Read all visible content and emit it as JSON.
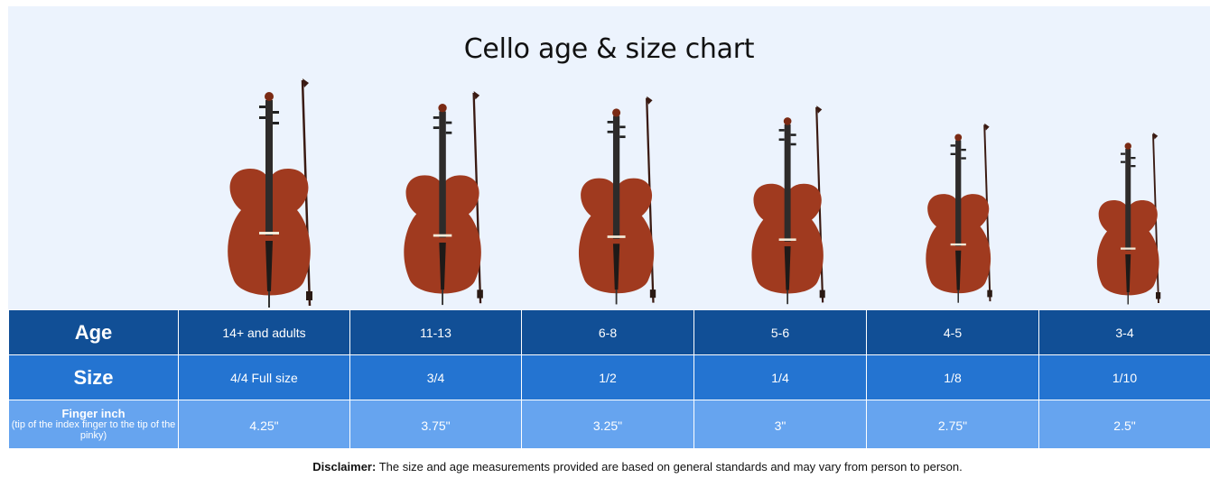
{
  "title": "Cello age & size chart",
  "table": {
    "row_headers": {
      "age": "Age",
      "size": "Size",
      "finger_title": "Finger inch",
      "finger_note": "(tip of the index finger to the tip of the pinky)"
    },
    "columns": [
      {
        "age": "14+ and adults",
        "size": "4/4 Full size",
        "finger": "4.25\""
      },
      {
        "age": "11-13",
        "size": "3/4",
        "finger": "3.75\""
      },
      {
        "age": "6-8",
        "size": "1/2",
        "finger": "3.25\""
      },
      {
        "age": "5-6",
        "size": "1/4",
        "finger": "3\""
      },
      {
        "age": "4-5",
        "size": "1/8",
        "finger": "2.75\""
      },
      {
        "age": "3-4",
        "size": "1/10",
        "finger": "2.5\""
      }
    ]
  },
  "disclaimer": {
    "label": "Disclaimer:",
    "text": "The size and age measurements provided are based on general standards and may vary from person to person."
  },
  "colors": {
    "age_row": "#114f96",
    "size_row": "#2474d1",
    "finger_row": "#66a4ef",
    "panel_background": "#ecf3fd",
    "cello_wood": "#a03a1f"
  }
}
